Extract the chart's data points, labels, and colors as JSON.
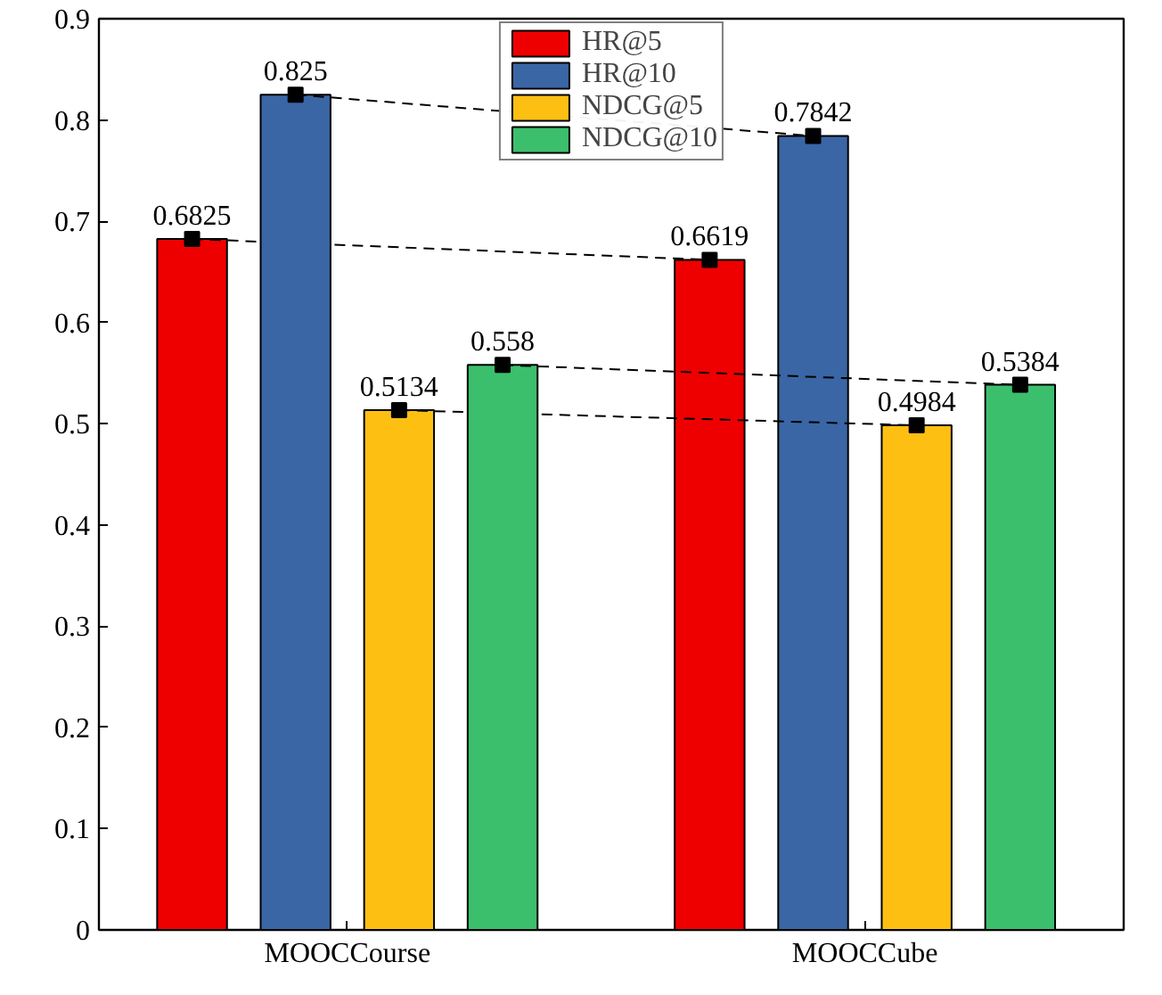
{
  "chart_data": {
    "type": "bar",
    "categories": [
      "MOOCCourse",
      "MOOCCube"
    ],
    "series": [
      {
        "name": "HR@5",
        "color": "#ee0000",
        "values": [
          0.6825,
          0.6619
        ],
        "marker": "square",
        "line_style": "dashed"
      },
      {
        "name": "HR@10",
        "color": "#3a66a6",
        "values": [
          0.825,
          0.7842
        ],
        "marker": "square",
        "line_style": "dashed"
      },
      {
        "name": "NDCG@5",
        "color": "#fdbf12",
        "values": [
          0.5134,
          0.4984
        ],
        "marker": "square",
        "line_style": "dashed"
      },
      {
        "name": "NDCG@10",
        "color": "#3cbf6c",
        "values": [
          0.558,
          0.5384
        ],
        "marker": "square",
        "line_style": "dashed"
      }
    ],
    "ylim": [
      0,
      0.9
    ],
    "yticks": [
      0,
      0.1,
      0.2,
      0.3,
      0.4,
      0.5,
      0.6,
      0.7,
      0.8,
      0.9
    ],
    "data_labels": true,
    "legend": "top",
    "grid": false
  }
}
